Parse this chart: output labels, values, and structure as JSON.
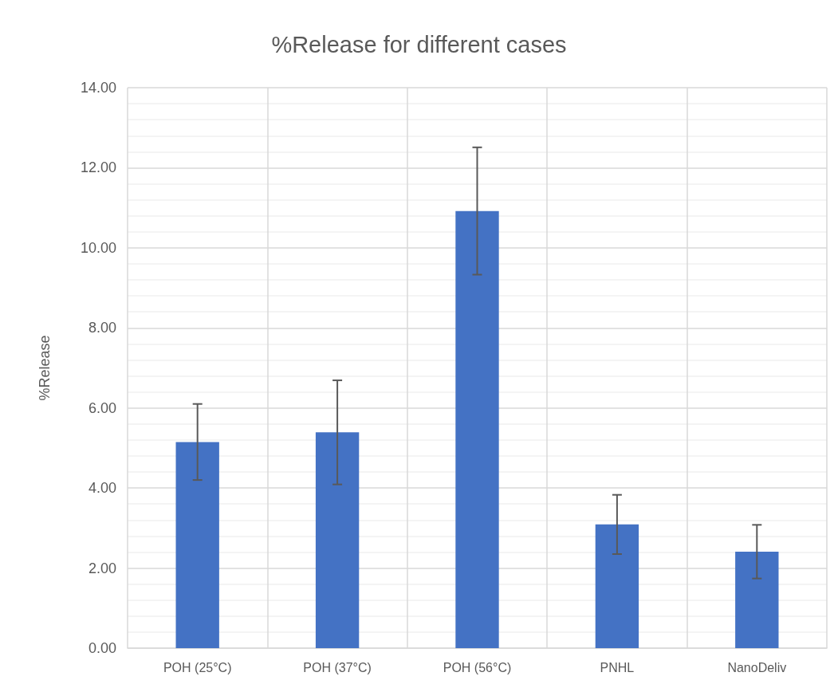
{
  "chart_data": {
    "type": "bar",
    "title": "%Release for different cases",
    "ylabel": "%Release",
    "categories": [
      "POH (25°C)",
      "POH (37°C)",
      "POH (56°C)",
      "PNHL",
      "NanoDeliv"
    ],
    "values": [
      5.15,
      5.39,
      10.92,
      3.09,
      2.41
    ],
    "errors": [
      0.95,
      1.3,
      1.59,
      0.74,
      0.67
    ],
    "color": "#4472c4",
    "ylim": [
      0,
      14
    ],
    "yticks": [
      {
        "value": 0,
        "label": "0.00"
      },
      {
        "value": 2,
        "label": "2.00"
      },
      {
        "value": 4,
        "label": "4.00"
      },
      {
        "value": 6,
        "label": "6.00"
      },
      {
        "value": 8,
        "label": "8.00"
      },
      {
        "value": 10,
        "label": "10.00"
      },
      {
        "value": 12,
        "label": "12.00"
      },
      {
        "value": 14,
        "label": "14.00"
      }
    ],
    "grid": true
  }
}
